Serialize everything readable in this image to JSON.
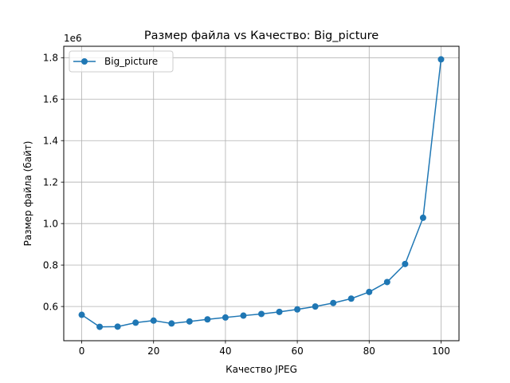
{
  "chart_data": {
    "type": "line",
    "title": "Размер файла vs Качество: Big_picture",
    "xlabel": "Качество JPEG",
    "ylabel": "Размер файла (байт)",
    "y_offset_label": "1e6",
    "xlim": [
      -5,
      105
    ],
    "ylim": [
      435000,
      1855000
    ],
    "xticks": [
      0,
      20,
      40,
      60,
      80,
      100
    ],
    "xtick_labels": [
      "0",
      "20",
      "40",
      "60",
      "80",
      "100"
    ],
    "yticks": [
      600000,
      800000,
      1000000,
      1200000,
      1400000,
      1600000,
      1800000
    ],
    "ytick_labels": [
      "0.6",
      "0.8",
      "1.0",
      "1.2",
      "1.4",
      "1.6",
      "1.8"
    ],
    "grid": true,
    "legend_position": "top-left",
    "series": [
      {
        "name": "Big_picture",
        "color": "#1f77b4",
        "marker": "circle",
        "x": [
          0,
          5,
          10,
          15,
          20,
          25,
          30,
          35,
          40,
          45,
          50,
          55,
          60,
          65,
          70,
          75,
          80,
          85,
          90,
          95,
          100
        ],
        "y": [
          560000,
          502000,
          503000,
          522000,
          532000,
          518000,
          528000,
          538000,
          547000,
          556000,
          564000,
          574000,
          586000,
          600000,
          617000,
          638000,
          670000,
          718000,
          805000,
          1028000,
          1792000
        ]
      }
    ]
  }
}
